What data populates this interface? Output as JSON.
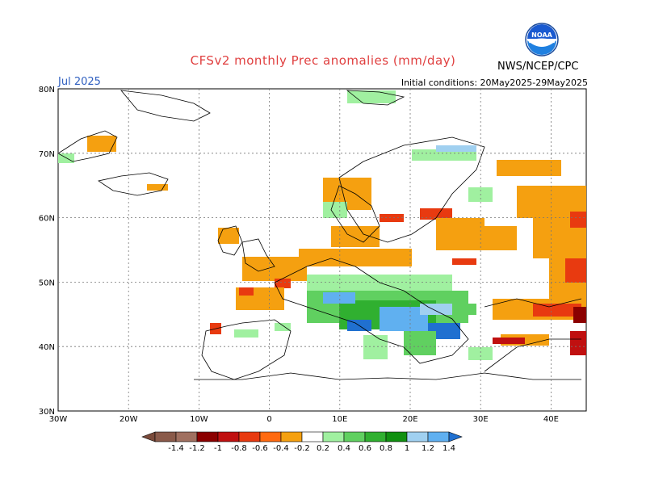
{
  "title": "CFSv2 monthly Prec anomalies (mm/day)",
  "valid_month": "Jul 2025",
  "initial_conditions": "Initial conditions: 20May2025-29May2025",
  "agency": "NWS/NCEP/CPC",
  "logo_text": "NOAA",
  "colors": {
    "title": "#e04040",
    "month": "#3060c0"
  },
  "map": {
    "lon_range": [
      -30,
      45
    ],
    "lat_range": [
      30,
      80
    ],
    "lon_ticks": [
      "30W",
      "20W",
      "10W",
      "0",
      "10E",
      "20E",
      "30E",
      "40E"
    ],
    "lat_ticks": [
      "30N",
      "40N",
      "50N",
      "60N",
      "70N",
      "80N"
    ],
    "grid": "dotted every 10 degrees"
  },
  "colorbar": {
    "labels": [
      "-1.4",
      "-1.2",
      "-1",
      "-0.8",
      "-0.6",
      "-0.4",
      "-0.2",
      "0.2",
      "0.4",
      "0.6",
      "0.8",
      "1",
      "1.2",
      "1.4"
    ],
    "colors": [
      "#7a4a3a",
      "#8a5a4a",
      "#a07060",
      "#8b0000",
      "#c01010",
      "#e83a10",
      "#ff6a10",
      "#f5a010",
      "#ffffff",
      "#a0f0a0",
      "#60d060",
      "#30b030",
      "#109010",
      "#a0d0f0",
      "#60b0f0",
      "#2070d0"
    ]
  }
}
